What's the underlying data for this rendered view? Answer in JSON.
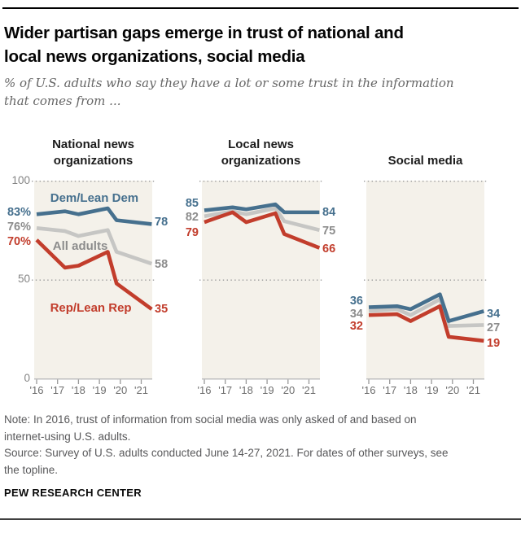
{
  "header": {
    "title_lines": [
      "Wider partisan gaps emerge in trust of national and",
      "local news organizations, social media"
    ],
    "subtitle_lines": [
      "% of U.S. adults who say they have a lot or some trust in the information",
      "that comes from ..."
    ]
  },
  "colors": {
    "dem": "#46708E",
    "rep": "#C23D2C",
    "all_line": "#C6C6C4",
    "gray_text": "#8C8C8C",
    "beige": "#F4F1EA",
    "grid": "#999999",
    "baseline": "#BFBFBF",
    "axis_text": "#858585",
    "x_text": "#6E6E6E"
  },
  "chart_data": [
    {
      "type": "line",
      "title": "National news organizations",
      "header_lines": [
        "National news",
        "organizations"
      ],
      "x_tick_labels": [
        "'16",
        "'17",
        "'18",
        "'19",
        "'20",
        "'21"
      ],
      "x_positions": [
        2016,
        2017.35,
        2018,
        2019.4,
        2019.82,
        2021.5
      ],
      "ylim": [
        0,
        100
      ],
      "y_gridlines": [
        100,
        50
      ],
      "y_ticks": [
        {
          "label": "100",
          "v": 100
        },
        {
          "label": "50",
          "v": 50
        },
        {
          "label": "0",
          "v": 0
        }
      ],
      "series": [
        {
          "name": "All adults",
          "key": "all",
          "values": [
            76,
            74.5,
            72,
            75,
            64,
            58
          ]
        },
        {
          "name": "Rep/Lean Rep",
          "key": "rep",
          "values": [
            70,
            56,
            57,
            64,
            48,
            35
          ]
        },
        {
          "name": "Dem/Lean Dem",
          "key": "dem",
          "values": [
            83,
            84.5,
            83,
            86,
            80,
            78
          ]
        }
      ],
      "left_labels": [
        {
          "text": "83%",
          "c": "dem",
          "v": 84
        },
        {
          "text": "76%",
          "c": "gray",
          "v": 76.5
        },
        {
          "text": "70%",
          "c": "rep",
          "v": 69
        }
      ],
      "right_labels": [
        {
          "text": "78",
          "c": "dem",
          "v": 79
        },
        {
          "text": "58",
          "c": "gray",
          "v": 57.5
        },
        {
          "text": "35",
          "c": "rep",
          "v": 35
        }
      ],
      "series_labels": [
        {
          "text": "Dem/Lean Dem",
          "c": "dem",
          "x": 0.51,
          "v": 91
        },
        {
          "text": "All adults",
          "c": "gray",
          "x": 0.39,
          "v": 66.5
        },
        {
          "text": "Rep/Lean Rep",
          "c": "rep",
          "x": 0.48,
          "v": 35.5
        }
      ]
    },
    {
      "type": "line",
      "title": "Local news organizations",
      "header_lines": [
        "Local news",
        "organizations"
      ],
      "x_tick_labels": [
        "'16",
        "'17",
        "'18",
        "'19",
        "'20",
        "'21"
      ],
      "x_positions": [
        2016,
        2017.35,
        2018,
        2019.4,
        2019.82,
        2021.5
      ],
      "ylim": [
        0,
        100
      ],
      "y_gridlines": [
        100,
        50
      ],
      "y_ticks": [],
      "series": [
        {
          "name": "All adults",
          "key": "all",
          "values": [
            82,
            84.5,
            83,
            86,
            79.5,
            75
          ]
        },
        {
          "name": "Rep/Lean Rep",
          "key": "rep",
          "values": [
            79,
            84,
            79,
            83.5,
            73,
            66
          ]
        },
        {
          "name": "Dem/Lean Dem",
          "key": "dem",
          "values": [
            85,
            86.5,
            85.5,
            88,
            84,
            84
          ]
        }
      ],
      "left_labels": [
        {
          "text": "85",
          "c": "dem",
          "v": 88.5
        },
        {
          "text": "82",
          "c": "gray",
          "v": 81.5
        },
        {
          "text": "79",
          "c": "rep",
          "v": 73.5
        }
      ],
      "right_labels": [
        {
          "text": "84",
          "c": "dem",
          "v": 84
        },
        {
          "text": "75",
          "c": "gray",
          "v": 74.5
        },
        {
          "text": "66",
          "c": "rep",
          "v": 65.5
        }
      ],
      "series_labels": []
    },
    {
      "type": "line",
      "title": "Social media",
      "header_lines": [
        "Social media"
      ],
      "x_tick_labels": [
        "'16",
        "'17",
        "'18",
        "'19",
        "'20",
        "'21"
      ],
      "x_positions": [
        2016,
        2017.35,
        2018,
        2019.4,
        2019.82,
        2021.5
      ],
      "ylim": [
        0,
        100
      ],
      "y_gridlines": [
        100,
        50
      ],
      "y_ticks": [],
      "series": [
        {
          "name": "All adults",
          "key": "all",
          "values": [
            34,
            35,
            32,
            40,
            26.5,
            27
          ]
        },
        {
          "name": "Rep/Lean Rep",
          "key": "rep",
          "values": [
            32,
            32.5,
            29,
            36.5,
            21,
            19
          ]
        },
        {
          "name": "Dem/Lean Dem",
          "key": "dem",
          "values": [
            36,
            36.5,
            35,
            42.5,
            29,
            34
          ]
        }
      ],
      "left_labels": [
        {
          "text": "36",
          "c": "dem",
          "v": 39
        },
        {
          "text": "34",
          "c": "gray",
          "v": 32.5
        },
        {
          "text": "32",
          "c": "rep",
          "v": 26.5
        }
      ],
      "right_labels": [
        {
          "text": "34",
          "c": "dem",
          "v": 32.5
        },
        {
          "text": "27",
          "c": "gray",
          "v": 25.5
        },
        {
          "text": "19",
          "c": "rep",
          "v": 17.5
        }
      ],
      "series_labels": []
    }
  ],
  "notes": {
    "note_lines": [
      "Note: In 2016, trust of information from social media was only asked of and based on",
      "internet-using U.S. adults."
    ],
    "source_lines": [
      "Source: Survey of U.S. adults conducted June 14-27, 2021. For dates of other surveys, see",
      "the topline."
    ],
    "brand": "PEW RESEARCH CENTER"
  }
}
